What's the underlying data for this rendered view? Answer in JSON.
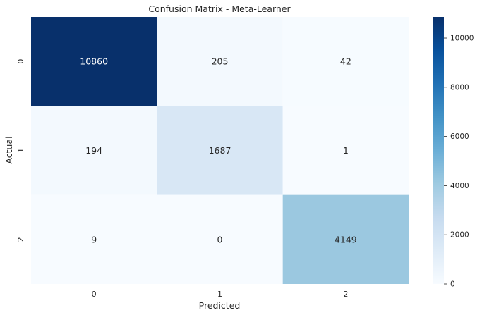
{
  "chart_data": {
    "type": "heatmap",
    "title": "Confusion Matrix - Meta-Learner",
    "xlabel": "Predicted",
    "ylabel": "Actual",
    "x_categories": [
      "0",
      "1",
      "2"
    ],
    "y_categories": [
      "0",
      "1",
      "2"
    ],
    "values": [
      [
        10860,
        205,
        42
      ],
      [
        194,
        1687,
        1
      ],
      [
        9,
        0,
        4149
      ]
    ],
    "colormap": "Blues",
    "colorbar": {
      "min": 0,
      "max": 10860,
      "ticks": [
        0,
        2000,
        4000,
        6000,
        8000,
        10000
      ]
    },
    "grid": false
  }
}
